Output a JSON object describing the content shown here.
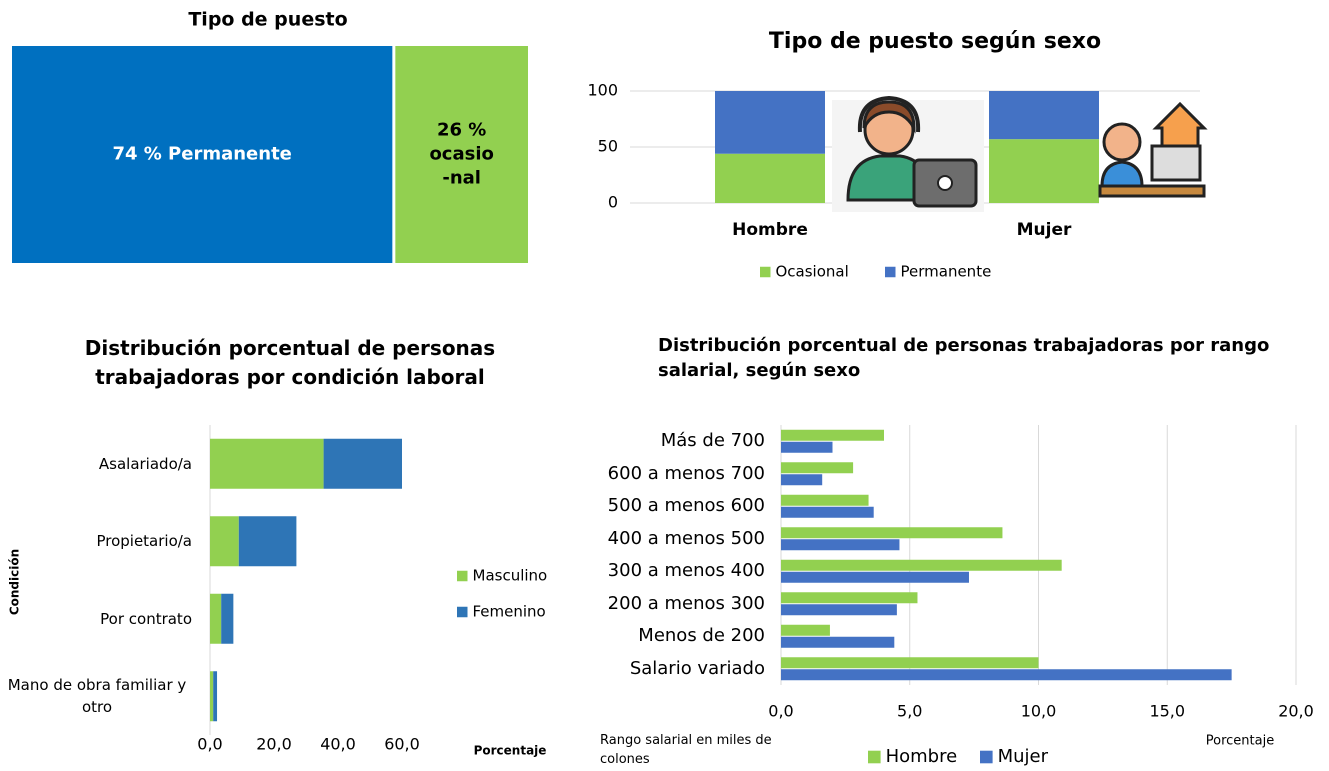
{
  "chart_data": [
    {
      "type": "treemap",
      "title": "Tipo de puesto",
      "values": [
        74,
        26
      ],
      "value_labels": [
        [
          "74 % Permanente"
        ],
        [
          "26 %",
          "ocasio",
          "-nal"
        ]
      ],
      "colors": [
        "#0070c0",
        "#92d050"
      ]
    },
    {
      "type": "bar",
      "stacked": true,
      "orientation": "vertical",
      "title": "Tipo de puesto según sexo",
      "categories": [
        "Hombre",
        "Mujer"
      ],
      "series": [
        {
          "name": "Ocasional",
          "color": "#92d050",
          "values": [
            44,
            57
          ]
        },
        {
          "name": "Permanente",
          "color": "#4472c4",
          "values": [
            56,
            43
          ]
        }
      ],
      "ylim": [
        0,
        100
      ],
      "yticks": [
        0,
        50,
        100
      ],
      "grid": true,
      "legend": "bottom"
    },
    {
      "type": "bar",
      "stacked": true,
      "orientation": "horizontal",
      "title": "Distribución porcentual de personas trabajadoras por condición laboral",
      "categories": [
        "Asalariado/a",
        "Propietario/a",
        "Por contrato",
        "Mano de obra familiar y otro"
      ],
      "series": [
        {
          "name": "Masculino",
          "color": "#92d050",
          "values": [
            35.5,
            9,
            3.5,
            1
          ]
        },
        {
          "name": "Femenino",
          "color": "#2e75b6",
          "values": [
            24.5,
            18,
            3.8,
            1.2
          ]
        }
      ],
      "xlim": [
        0,
        60
      ],
      "xticks": [
        {
          "value": 0,
          "label": "0,0"
        },
        {
          "value": 20,
          "label": "20,0"
        },
        {
          "value": 40,
          "label": "40,0"
        },
        {
          "value": 60,
          "label": "60,0"
        }
      ],
      "x_label": "Porcentaje",
      "y_label": "Condición",
      "grid": false,
      "legend": "right"
    },
    {
      "type": "bar",
      "stacked": false,
      "orientation": "horizontal",
      "title": "Distribución porcentual de personas trabajadoras por rango salarial, según sexo",
      "categories": [
        "Más de 700",
        "600 a menos 700",
        "500 a menos 600",
        "400 a menos 500",
        "300 a menos 400",
        "200 a menos 300",
        "Menos de  200",
        "Salario variado"
      ],
      "series": [
        {
          "name": "Hombre",
          "color": "#92d050",
          "values": [
            4.0,
            2.8,
            3.4,
            8.6,
            10.9,
            5.3,
            1.9,
            10.0
          ]
        },
        {
          "name": "Mujer",
          "color": "#4472c4",
          "values": [
            2.0,
            1.6,
            3.6,
            4.6,
            7.3,
            4.5,
            4.4,
            17.5
          ]
        }
      ],
      "xlim": [
        0,
        20
      ],
      "xticks": [
        {
          "value": 0,
          "label": "0,0"
        },
        {
          "value": 5,
          "label": "5,0"
        },
        {
          "value": 10,
          "label": "10,0"
        },
        {
          "value": 15,
          "label": "15,0"
        },
        {
          "value": 20,
          "label": "20,0"
        }
      ],
      "x_label": "Porcentaje",
      "y_label": "Rango salarial en miles de colones",
      "grid": true,
      "legend": "bottom"
    }
  ]
}
